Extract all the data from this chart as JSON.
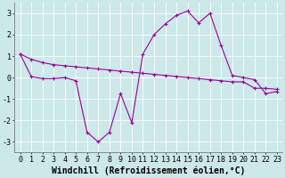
{
  "line1_x": [
    0,
    1,
    2,
    3,
    4,
    5,
    6,
    7,
    8,
    9,
    10,
    11,
    12,
    13,
    14,
    15,
    16,
    17,
    18,
    19,
    20,
    21,
    22,
    23
  ],
  "line1_y": [
    1.1,
    0.85,
    0.7,
    0.6,
    0.55,
    0.5,
    0.45,
    0.4,
    0.35,
    0.3,
    0.25,
    0.2,
    0.15,
    0.1,
    0.05,
    0.0,
    -0.05,
    -0.1,
    -0.15,
    -0.2,
    -0.2,
    -0.5,
    -0.5,
    -0.55
  ],
  "line2_x": [
    0,
    1,
    2,
    3,
    4,
    5,
    6,
    7,
    8,
    9,
    10,
    11,
    12,
    13,
    14,
    15,
    16,
    17,
    18,
    19,
    20,
    21,
    22,
    23
  ],
  "line2_y": [
    1.1,
    0.05,
    -0.05,
    -0.05,
    0.0,
    -0.15,
    -2.55,
    -3.0,
    -2.55,
    -0.75,
    -2.1,
    1.1,
    2.0,
    2.5,
    2.9,
    3.1,
    2.55,
    3.0,
    1.5,
    0.1,
    0.0,
    -0.1,
    -0.75,
    -0.65
  ],
  "line_color": "#990099",
  "bg_color": "#cce8e8",
  "grid_color": "#ffffff",
  "xlabel": "Windchill (Refroidissement éolien,°C)",
  "xlim": [
    -0.5,
    23.5
  ],
  "ylim": [
    -3.5,
    3.5
  ],
  "yticks": [
    -3,
    -2,
    -1,
    0,
    1,
    2,
    3
  ],
  "xticks": [
    0,
    1,
    2,
    3,
    4,
    5,
    6,
    7,
    8,
    9,
    10,
    11,
    12,
    13,
    14,
    15,
    16,
    17,
    18,
    19,
    20,
    21,
    22,
    23
  ],
  "xlabel_fontsize": 7,
  "tick_fontsize": 6,
  "marker": "+",
  "markersize": 3.5,
  "linewidth": 0.8
}
